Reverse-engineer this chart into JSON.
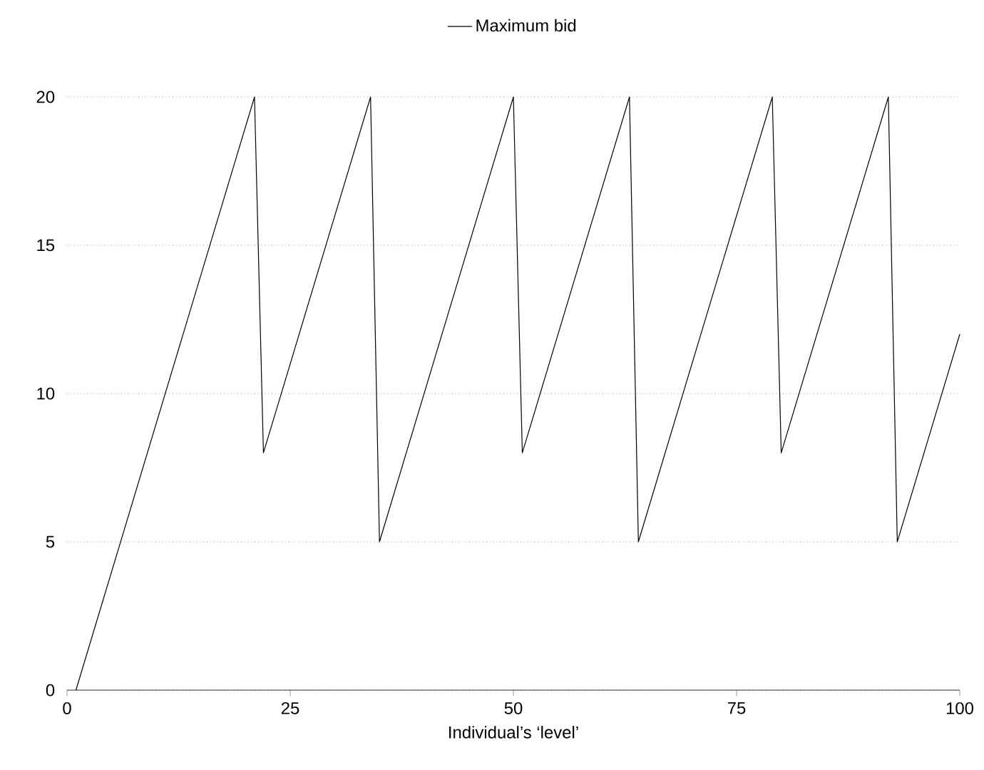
{
  "chart_data": {
    "type": "line",
    "xlabel": "Individual’s ‘level’",
    "xlim": [
      0,
      100
    ],
    "xticks": [
      0,
      25,
      50,
      75,
      100
    ],
    "ylim": [
      0,
      20
    ],
    "yticks": [
      0,
      5,
      10,
      15,
      20
    ],
    "grid": "y",
    "legend": "top",
    "series": [
      {
        "name": "Maximum bid",
        "color": "#000000",
        "x": [
          1,
          21,
          22,
          34,
          35,
          50,
          51,
          63,
          64,
          79,
          80,
          92,
          93,
          100
        ],
        "values": [
          0,
          20,
          8,
          20,
          5,
          20,
          8,
          20,
          5,
          20,
          8,
          20,
          5,
          12
        ]
      }
    ]
  }
}
